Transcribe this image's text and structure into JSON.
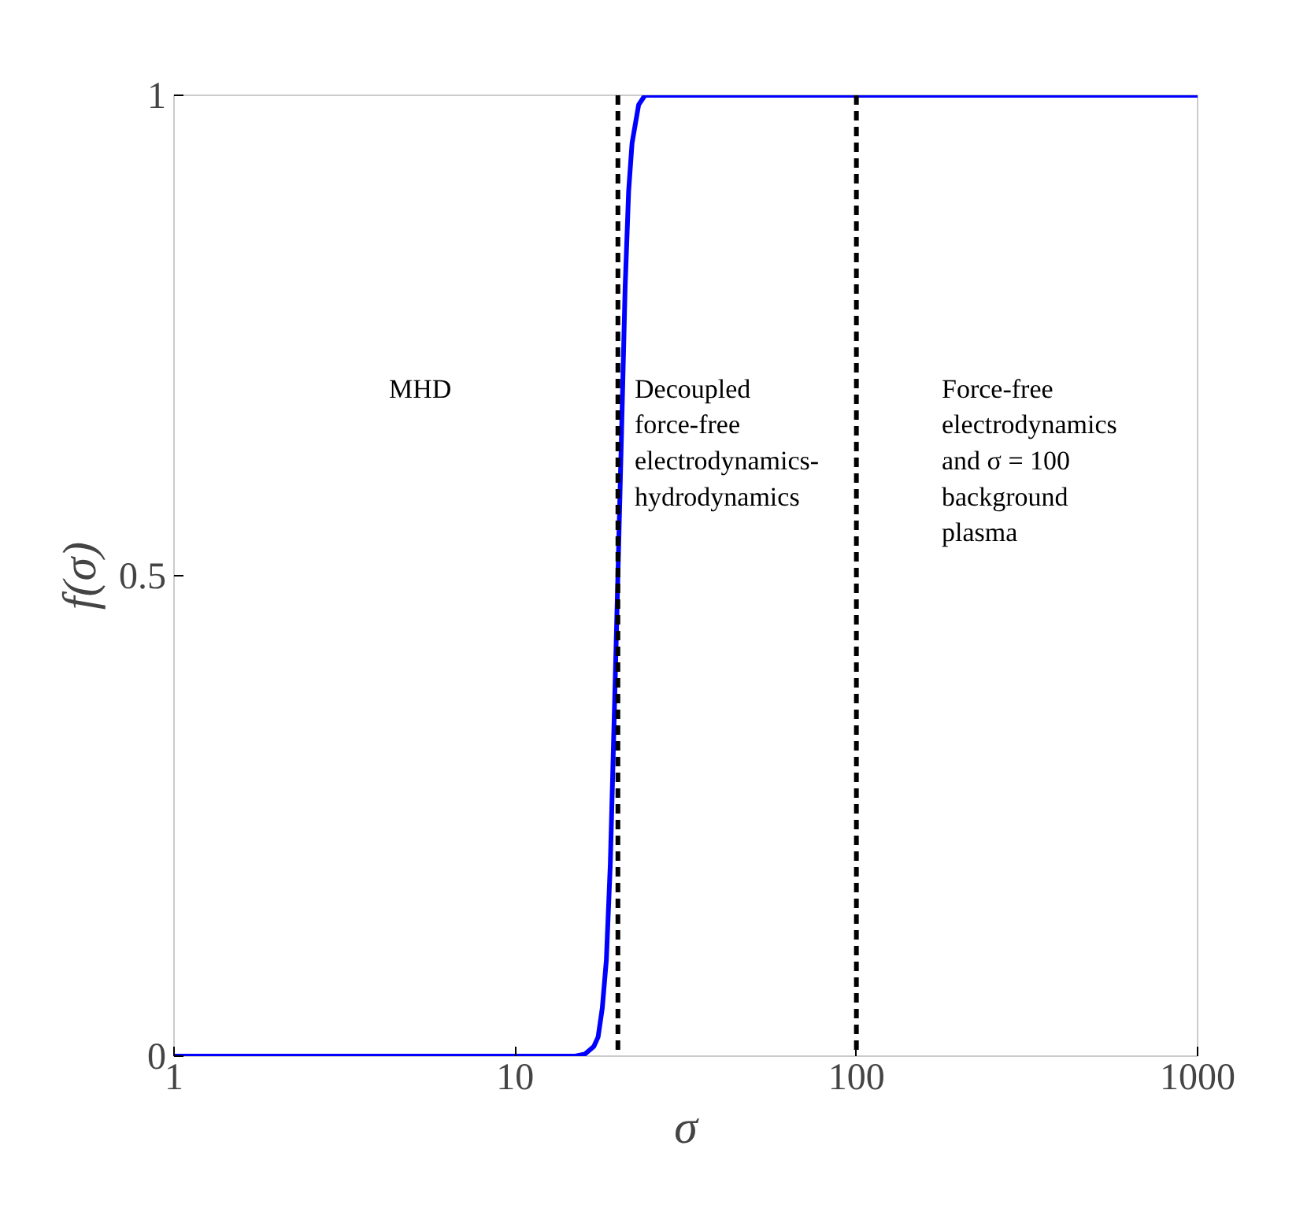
{
  "chart_data": {
    "type": "line",
    "xlabel": "σ",
    "ylabel": "f(σ)",
    "log": "x",
    "xlim": [
      1,
      1000
    ],
    "ylim": [
      0,
      1
    ],
    "xticks": [
      1,
      10,
      100,
      1000
    ],
    "yticks": [
      0,
      0.5,
      1
    ],
    "grid": false,
    "marker": "none",
    "line_style": "solid",
    "series": [
      {
        "color": "#0000ff",
        "x": [
          1,
          5,
          10,
          15,
          16,
          17,
          17.5,
          18,
          18.5,
          19,
          19.5,
          20,
          20.5,
          21,
          21.5,
          22,
          23,
          24,
          30,
          100,
          1000
        ],
        "values": [
          0,
          0,
          0,
          0,
          0.002,
          0.01,
          0.02,
          0.05,
          0.1,
          0.2,
          0.35,
          0.5,
          0.65,
          0.8,
          0.9,
          0.95,
          0.99,
          1,
          1,
          1,
          1
        ]
      }
    ],
    "ref_lines": [
      {
        "axis": "x",
        "value": 20,
        "color": "#000000",
        "line_style": "dashed"
      },
      {
        "axis": "x",
        "value": 100,
        "color": "#000000",
        "line_style": "dashed"
      }
    ],
    "annotations": [
      "MHD",
      "Decoupled\nforce-free\nelectrodynamics-\nhydrodynamics",
      "Force-free\nelectrodynamics\nand σ = 100\nbackground\nplasma"
    ]
  }
}
